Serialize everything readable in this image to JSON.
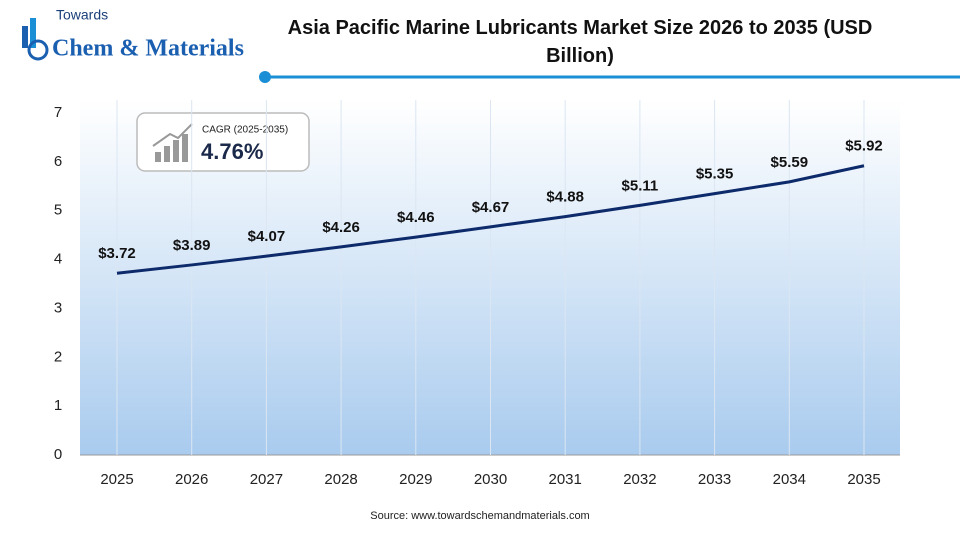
{
  "logo": {
    "line1": "Towards",
    "line2": "Chem & Materials"
  },
  "cagr": {
    "label": "CAGR (2025-2035)",
    "value": "4.76%"
  },
  "source": "Source: www.towardschemandmaterials.com",
  "chart_data": {
    "type": "line",
    "title": "Asia Pacific Marine Lubricants Market Size 2026 to 2035 (USD Billion)",
    "categories": [
      "2025",
      "2026",
      "2027",
      "2028",
      "2029",
      "2030",
      "2031",
      "2032",
      "2033",
      "2034",
      "2035"
    ],
    "values": [
      3.72,
      3.89,
      4.07,
      4.26,
      4.46,
      4.67,
      4.88,
      5.11,
      5.35,
      5.59,
      5.92
    ],
    "value_labels": [
      "$3.72",
      "$3.89",
      "$4.07",
      "$4.26",
      "$4.46",
      "$4.67",
      "$4.88",
      "$5.11",
      "$5.35",
      "$5.59",
      "$5.92"
    ],
    "color": "#0d2a6b",
    "ylim": [
      0,
      7
    ],
    "yticks": [
      0,
      1,
      2,
      3,
      4,
      5,
      6,
      7
    ]
  }
}
